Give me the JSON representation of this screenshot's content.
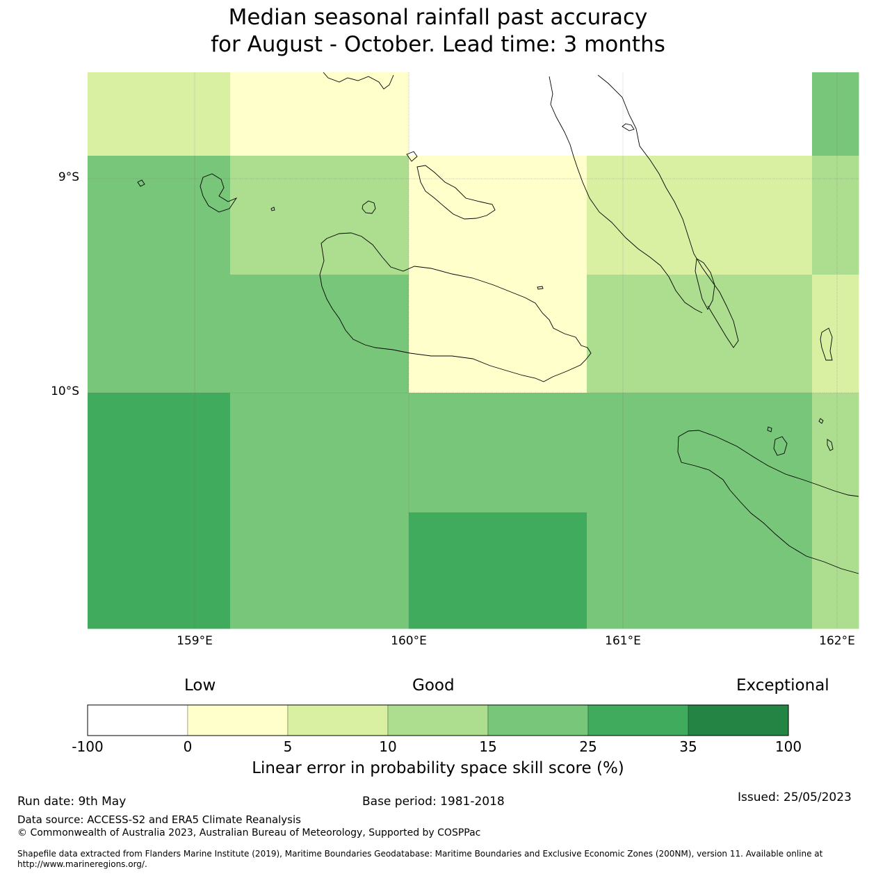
{
  "title": {
    "line1": "Median seasonal rainfall past accuracy",
    "line2": "for August - October. Lead time: 3 months"
  },
  "map": {
    "lat_labels": [
      "9°S",
      "10°S"
    ],
    "lon_labels": [
      "159°E",
      "160°E",
      "161°E",
      "162°E"
    ],
    "colors": {
      "white": "#ffffff",
      "c0_5": "#ffffcc",
      "c5_10": "#d9f0a3",
      "c10_15": "#addd8e",
      "c15_25": "#78c679",
      "c25_35": "#41ab5d",
      "c35_100": "#238443"
    },
    "grid_cells": [
      [
        "c5_10",
        "c0_5",
        "c0_5",
        "white",
        "white",
        "white",
        "white",
        "white",
        "c15_25"
      ],
      [
        "c15_25",
        "c10_15",
        "c10_15",
        "c0_5",
        "c0_5",
        "c5_10",
        "c5_10",
        "c5_10",
        "c10_15"
      ],
      [
        "c15_25",
        "c15_25",
        "c15_25",
        "c0_5",
        "c0_5",
        "c10_15",
        "c10_15",
        "c10_15",
        "c5_10"
      ],
      [
        "c25_35",
        "c15_25",
        "c15_25",
        "c15_25",
        "c15_25",
        "c15_25",
        "c15_25",
        "c15_25",
        "c10_15"
      ],
      [
        "c25_35",
        "c15_25",
        "c15_25",
        "c25_35",
        "c25_35",
        "c15_25",
        "c15_25",
        "c15_25",
        "c10_15"
      ]
    ]
  },
  "colorbar": {
    "category_words": [
      "Low",
      "Good",
      "Exceptional"
    ],
    "ticks": [
      "-100",
      "0",
      "5",
      "10",
      "15",
      "25",
      "35",
      "100"
    ],
    "colors": [
      "#ffffff",
      "#ffffcc",
      "#d9f0a3",
      "#addd8e",
      "#78c679",
      "#41ab5d",
      "#238443"
    ],
    "label": "Linear error in probability space skill score (%)"
  },
  "footer": {
    "run_date": "Run date: 9th May",
    "base_period": "Base period: 1981-2018",
    "issued": "Issued: 25/05/2023",
    "data_source": "Data source: ACCESS-S2 and ERA5 Climate Reanalysis",
    "copyright": "© Commonwealth of Australia 2023, Australian Bureau of Meteorology, Supported by COSPPac",
    "shapefile_line1": "Shapefile data extracted from Flanders Marine Institute (2019), Maritime Boundaries Geodatabase: Maritime Boundaries and Exclusive Economic Zones (200NM), version 11. Available online at",
    "shapefile_line2": "http://www.marineregions.org/."
  }
}
